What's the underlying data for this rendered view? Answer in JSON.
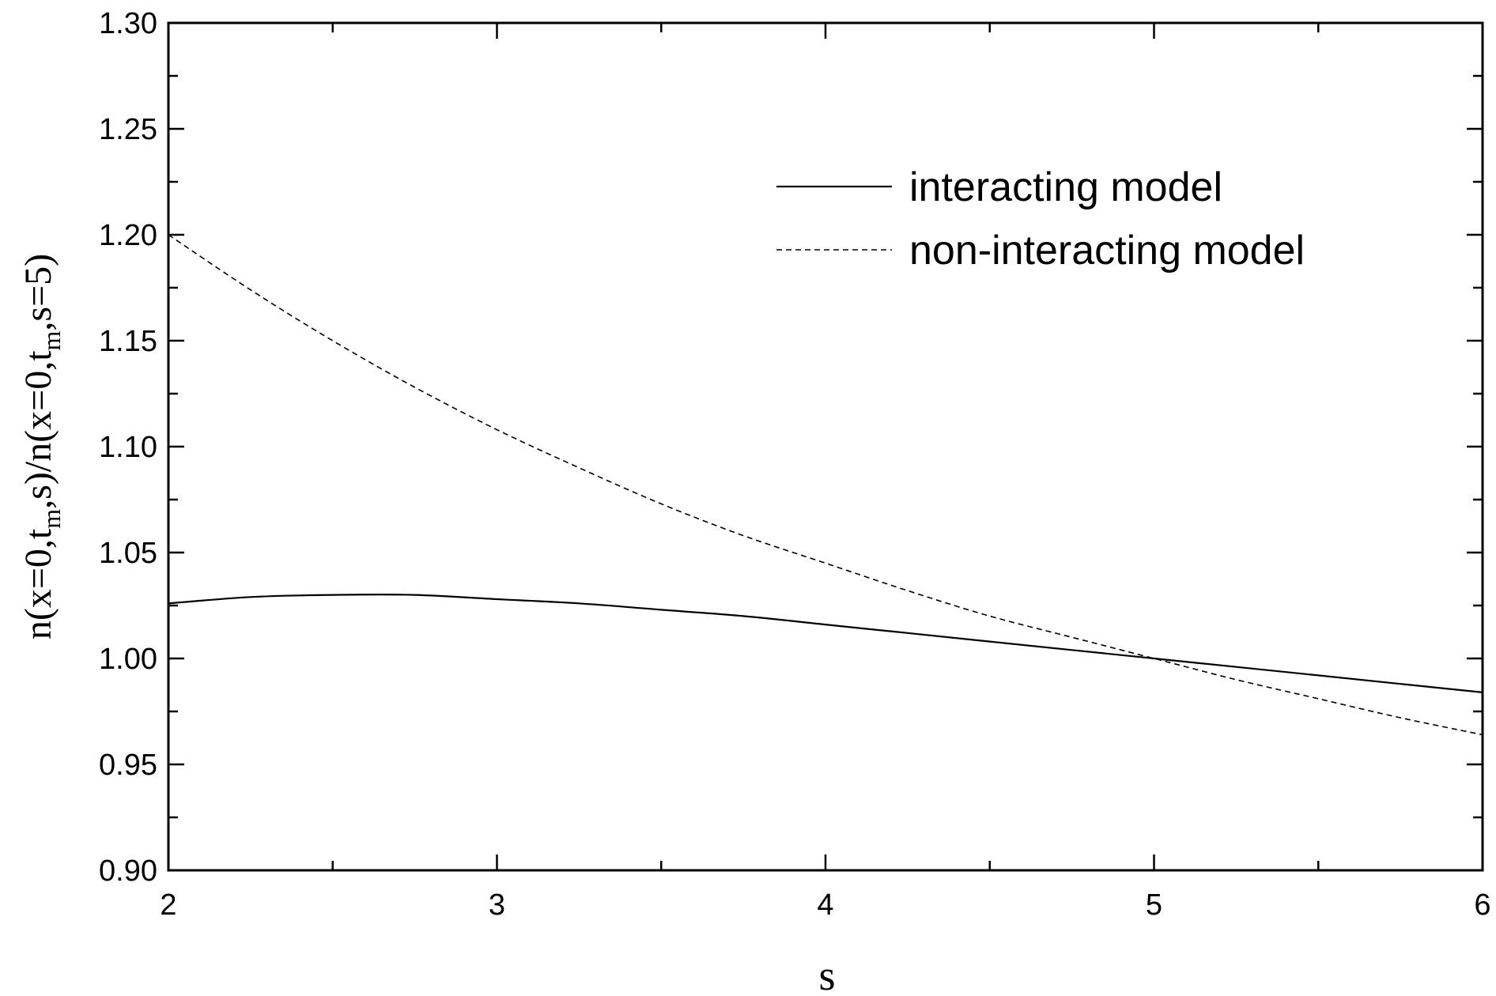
{
  "chart_data": {
    "type": "line",
    "xlabel": "s",
    "ylabel": {
      "parts": [
        "n(x=0,t",
        "m",
        ",s)/n(x=0,t",
        "m",
        ",s=5)"
      ]
    },
    "xlim": [
      2,
      6
    ],
    "ylim": [
      0.9,
      1.3
    ],
    "x_ticks": [
      2,
      3,
      4,
      5,
      6
    ],
    "x_tick_labels": [
      "2",
      "3",
      "4",
      "5",
      "6"
    ],
    "y_ticks": [
      0.9,
      0.95,
      1.0,
      1.05,
      1.1,
      1.15,
      1.2,
      1.25,
      1.3
    ],
    "y_tick_labels": [
      "0.90",
      "0.95",
      "1.00",
      "1.05",
      "1.10",
      "1.15",
      "1.20",
      "1.25",
      "1.30"
    ],
    "grid": false,
    "legend_position": "top-right",
    "series": [
      {
        "name": "interacting model",
        "style": "solid",
        "color": "#000000",
        "x": [
          2.0,
          2.25,
          2.5,
          2.75,
          3.0,
          3.25,
          3.5,
          3.75,
          4.0,
          4.25,
          4.5,
          4.75,
          5.0,
          5.25,
          5.5,
          5.75,
          6.0
        ],
        "y": [
          1.026,
          1.029,
          1.03,
          1.03,
          1.028,
          1.026,
          1.023,
          1.02,
          1.016,
          1.012,
          1.008,
          1.004,
          1.0,
          0.996,
          0.992,
          0.988,
          0.984
        ]
      },
      {
        "name": "non-interacting model",
        "style": "dashed",
        "color": "#000000",
        "x": [
          2.0,
          2.25,
          2.5,
          2.75,
          3.0,
          3.25,
          3.5,
          3.75,
          4.0,
          4.25,
          4.5,
          4.75,
          5.0,
          5.25,
          5.5,
          5.75,
          6.0
        ],
        "y": [
          1.2,
          1.174,
          1.15,
          1.128,
          1.108,
          1.09,
          1.073,
          1.058,
          1.045,
          1.032,
          1.02,
          1.01,
          1.0,
          0.99,
          0.981,
          0.972,
          0.964
        ]
      }
    ]
  }
}
